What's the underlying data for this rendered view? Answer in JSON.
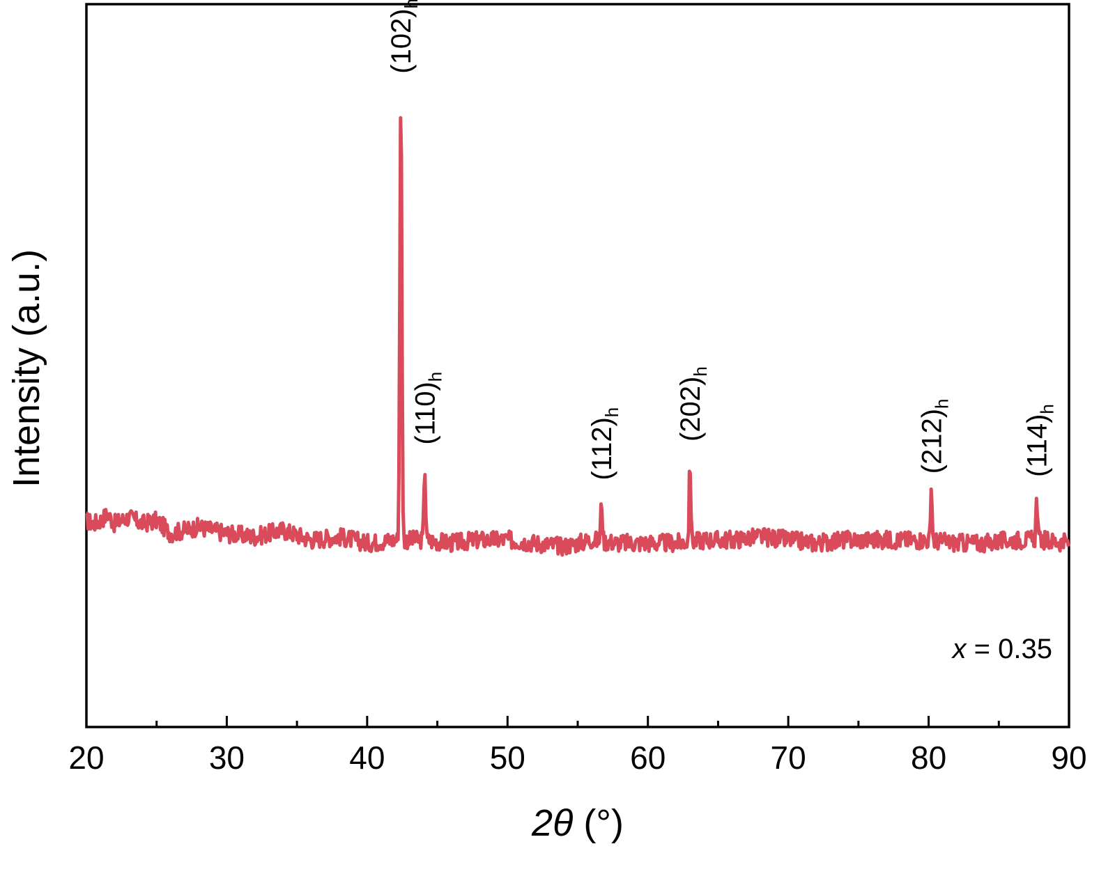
{
  "chart_data": {
    "type": "line",
    "title": "",
    "xlabel": "2θ (°)",
    "xlabel_parts": {
      "base": "2",
      "symbol": "θ",
      "unit": " (°)"
    },
    "ylabel": "Intensity (a.u.)",
    "xlim": [
      20,
      90
    ],
    "ylim": [
      -0.12,
      1.0
    ],
    "x_ticks": [
      20,
      30,
      40,
      50,
      60,
      70,
      80,
      90
    ],
    "x_tick_labels": [
      "20",
      "30",
      "40",
      "50",
      "60",
      "70",
      "80",
      "90"
    ],
    "x_minor_ticks": [
      25,
      35,
      45,
      55,
      65,
      75,
      85
    ],
    "y_ticks": [],
    "grid": false,
    "legend": "none",
    "annotation": {
      "variable": "x",
      "text": " = 0.35",
      "position": "bottom-right"
    },
    "series": [
      {
        "color": "#d94a5a",
        "baseline_points": [
          [
            20.0,
            0.2
          ],
          [
            20.5,
            0.195
          ],
          [
            21.0,
            0.2
          ],
          [
            21.5,
            0.21
          ],
          [
            22.0,
            0.195
          ],
          [
            23.0,
            0.205
          ],
          [
            24.0,
            0.195
          ],
          [
            25.0,
            0.2
          ],
          [
            26.0,
            0.18
          ],
          [
            28.0,
            0.19
          ],
          [
            30.0,
            0.18
          ],
          [
            32.0,
            0.175
          ],
          [
            34.0,
            0.185
          ],
          [
            36.0,
            0.17
          ],
          [
            38.0,
            0.175
          ],
          [
            40.0,
            0.165
          ],
          [
            42.0,
            0.17
          ],
          [
            44.0,
            0.17
          ],
          [
            46.0,
            0.165
          ],
          [
            48.0,
            0.17
          ],
          [
            50.0,
            0.17
          ],
          [
            52.0,
            0.165
          ],
          [
            54.0,
            0.16
          ],
          [
            56.0,
            0.17
          ],
          [
            58.0,
            0.165
          ],
          [
            60.0,
            0.165
          ],
          [
            62.0,
            0.165
          ],
          [
            64.0,
            0.17
          ],
          [
            66.0,
            0.17
          ],
          [
            68.0,
            0.175
          ],
          [
            70.0,
            0.17
          ],
          [
            72.0,
            0.165
          ],
          [
            74.0,
            0.17
          ],
          [
            76.0,
            0.17
          ],
          [
            78.0,
            0.17
          ],
          [
            80.0,
            0.17
          ],
          [
            82.0,
            0.165
          ],
          [
            84.0,
            0.165
          ],
          [
            86.0,
            0.17
          ],
          [
            88.0,
            0.17
          ],
          [
            90.0,
            0.165
          ]
        ],
        "peaks": [
          {
            "x": 42.4,
            "y": 0.86,
            "label": "(102)",
            "sub": "h"
          },
          {
            "x": 44.1,
            "y": 0.285,
            "label": "(110)",
            "sub": "h"
          },
          {
            "x": 56.7,
            "y": 0.23,
            "label": "(112)",
            "sub": "h"
          },
          {
            "x": 63.0,
            "y": 0.29,
            "label": "(202)",
            "sub": "h"
          },
          {
            "x": 80.2,
            "y": 0.24,
            "label": "(212)",
            "sub": "h"
          },
          {
            "x": 87.7,
            "y": 0.235,
            "label": "(114)",
            "sub": "h"
          }
        ]
      }
    ]
  }
}
